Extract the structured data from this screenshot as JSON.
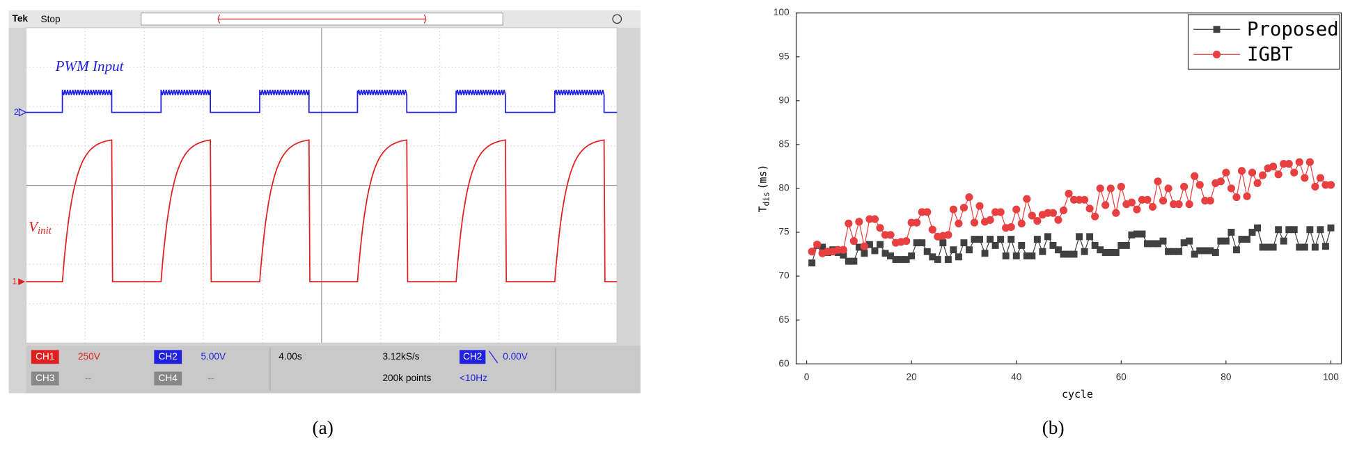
{
  "panel_a": {
    "brand": "Tek",
    "status": "Stop",
    "ch2_marker": "2",
    "ch1_marker": "1",
    "pwm_label": "PWM Input",
    "vinit": {
      "main": "V",
      "sub": "init"
    },
    "readouts": {
      "ch1": "CH1",
      "ch1_scale": "250V",
      "ch2": "CH2",
      "ch2_scale": "5.00V",
      "ch3": "CH3",
      "ch3_scale": "--",
      "ch4": "CH4",
      "ch4_scale": "--",
      "timebase": "4.00s",
      "rate": "3.12kS/s",
      "points": "200k points",
      "trigger_ch": "CH2",
      "trigger_level": "0.00V",
      "frequency": "<10Hz"
    }
  },
  "chart_data": {
    "type": "line",
    "ylabel": {
      "main": "T",
      "sub": "dis",
      "unit": "(ms)"
    },
    "xlabel": "cycle",
    "x": [
      1,
      2,
      3,
      4,
      5,
      6,
      7,
      8,
      9,
      10,
      11,
      12,
      13,
      14,
      15,
      16,
      17,
      18,
      19,
      20,
      21,
      22,
      23,
      24,
      25,
      26,
      27,
      28,
      29,
      30,
      31,
      32,
      33,
      34,
      35,
      36,
      37,
      38,
      39,
      40,
      41,
      42,
      43,
      44,
      45,
      46,
      47,
      48,
      49,
      50,
      51,
      52,
      53,
      54,
      55,
      56,
      57,
      58,
      59,
      60,
      61,
      62,
      63,
      64,
      65,
      66,
      67,
      68,
      69,
      70,
      71,
      72,
      73,
      74,
      75,
      76,
      77,
      78,
      79,
      80,
      81,
      82,
      83,
      84,
      85,
      86,
      87,
      88,
      89,
      90,
      91,
      92,
      93,
      94,
      95,
      96,
      97,
      98,
      99,
      100
    ],
    "series": [
      {
        "name": "Proposed",
        "color": "#404040",
        "marker": "square",
        "values": [
          71.5,
          73.5,
          73.3,
          72.7,
          73.0,
          72.7,
          72.4,
          71.7,
          71.7,
          73.3,
          72.6,
          73.6,
          72.9,
          73.6,
          72.6,
          72.3,
          71.9,
          71.9,
          71.9,
          72.3,
          73.8,
          73.8,
          72.8,
          72.2,
          71.9,
          73.8,
          71.9,
          73.0,
          72.2,
          73.8,
          73.0,
          74.2,
          74.2,
          72.6,
          74.2,
          73.5,
          74.2,
          72.3,
          74.2,
          72.3,
          73.5,
          72.3,
          72.3,
          74.2,
          72.8,
          74.5,
          73.5,
          73.0,
          72.5,
          72.5,
          72.5,
          74.5,
          72.8,
          74.5,
          73.5,
          73.0,
          72.7,
          72.7,
          72.7,
          73.5,
          73.5,
          74.7,
          74.8,
          74.8,
          73.7,
          73.7,
          73.7,
          74.0,
          72.8,
          72.8,
          72.8,
          73.8,
          74.0,
          72.5,
          72.9,
          72.9,
          72.9,
          72.7,
          74.0,
          74.0,
          75.0,
          73.0,
          74.2,
          74.2,
          75.0,
          75.5,
          73.3,
          73.3,
          73.3,
          75.3,
          74.0,
          75.3,
          75.3,
          73.3,
          73.3,
          75.3,
          73.3,
          75.3,
          73.4,
          75.5
        ]
      },
      {
        "name": "IGBT",
        "color": "#e84040",
        "marker": "circle",
        "values": [
          72.8,
          73.6,
          72.6,
          72.8,
          72.8,
          73.0,
          73.0,
          76.0,
          74.0,
          76.2,
          73.4,
          76.5,
          76.5,
          75.5,
          74.7,
          74.7,
          73.8,
          73.9,
          74.0,
          76.1,
          76.1,
          77.3,
          77.3,
          75.3,
          74.5,
          74.6,
          74.7,
          77.6,
          76.0,
          77.8,
          79.0,
          76.1,
          78.0,
          76.2,
          76.4,
          77.3,
          77.3,
          75.5,
          75.6,
          77.6,
          76.0,
          78.8,
          76.9,
          76.3,
          77.0,
          77.2,
          77.2,
          76.4,
          77.5,
          79.4,
          78.7,
          78.7,
          78.7,
          77.7,
          76.8,
          80.0,
          78.1,
          80.0,
          77.2,
          80.2,
          78.2,
          78.4,
          77.6,
          78.7,
          78.7,
          77.9,
          80.8,
          78.6,
          80.0,
          78.2,
          78.2,
          80.2,
          78.2,
          81.4,
          80.4,
          78.6,
          78.6,
          80.6,
          80.8,
          81.8,
          80.0,
          79.0,
          82.0,
          79.1,
          81.8,
          80.6,
          81.5,
          82.3,
          82.5,
          81.6,
          82.8,
          82.8,
          81.8,
          83.0,
          81.2,
          83.0,
          80.2,
          81.2,
          80.4,
          80.4
        ]
      }
    ],
    "xlim": [
      -2,
      102
    ],
    "xticks": [
      0,
      20,
      40,
      60,
      80,
      100
    ],
    "ylim": [
      60,
      100
    ],
    "yticks": [
      60,
      65,
      70,
      75,
      80,
      85,
      90,
      95,
      100
    ],
    "grid": false,
    "legend": "upper right"
  },
  "captions": {
    "a": "(a)",
    "b": "(b)"
  }
}
